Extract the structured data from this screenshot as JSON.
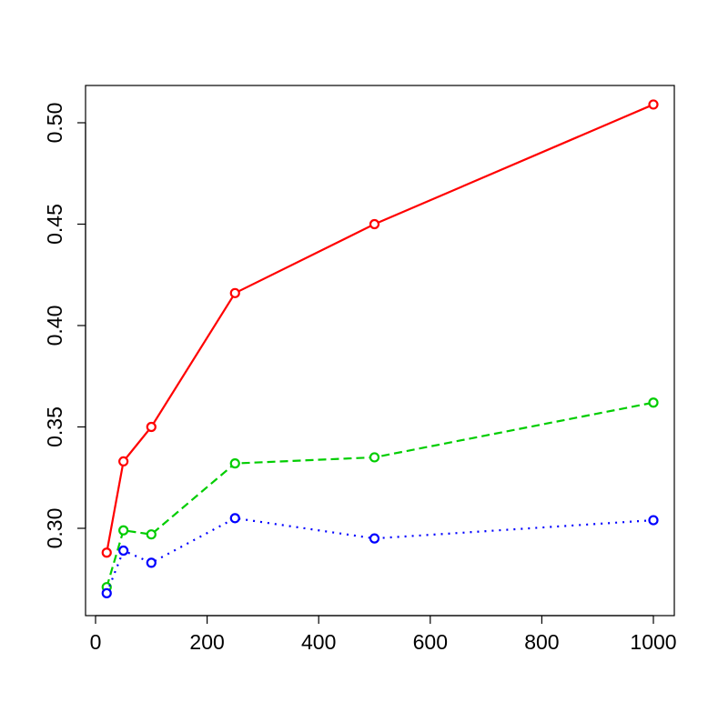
{
  "chart_data": {
    "type": "line",
    "title": "",
    "xlabel": "",
    "ylabel": "",
    "x": [
      20,
      50,
      100,
      250,
      500,
      1000
    ],
    "xlim": [
      0,
      1000
    ],
    "ylim": [
      0.25,
      0.52
    ],
    "xticks": [
      0,
      200,
      400,
      600,
      800,
      1000
    ],
    "xtick_labels": [
      "0",
      "200",
      "400",
      "600",
      "800",
      "1000"
    ],
    "yticks": [
      0.3,
      0.35,
      0.4,
      0.45,
      0.5
    ],
    "ytick_labels": [
      "0.30",
      "0.35",
      "0.40",
      "0.45",
      "0.50"
    ],
    "grid": false,
    "legend": "none",
    "series": [
      {
        "values": [
          0.288,
          0.333,
          0.35,
          0.416,
          0.45,
          0.509
        ],
        "color": "#ff0000",
        "line_style": "solid",
        "marker": "open-circle"
      },
      {
        "values": [
          0.271,
          0.299,
          0.297,
          0.332,
          0.335,
          0.362
        ],
        "color": "#00cd00",
        "line_style": "dashed",
        "marker": "open-circle"
      },
      {
        "values": [
          0.268,
          0.289,
          0.283,
          0.305,
          0.295,
          0.304
        ],
        "color": "#0000ff",
        "line_style": "dotted",
        "marker": "open-circle"
      }
    ]
  }
}
